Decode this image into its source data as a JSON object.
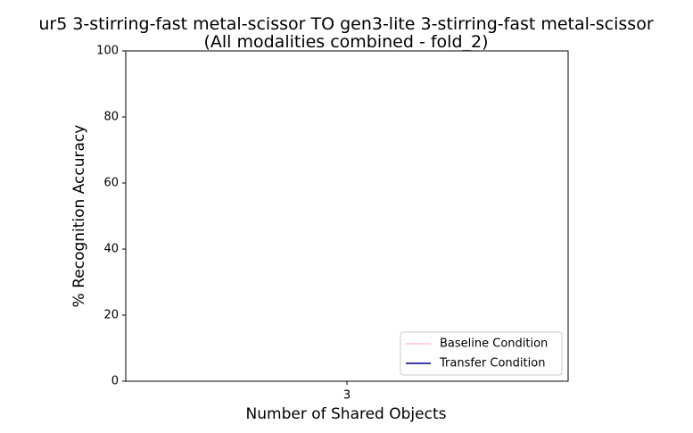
{
  "chart_data": {
    "type": "line",
    "title": "ur5 3-stirring-fast metal-scissor TO gen3-lite 3-stirring-fast metal-scissor\n(All modalities combined - fold_2)",
    "xlabel": "Number of Shared Objects",
    "ylabel": "% Recognition Accuracy",
    "categories": [
      "3"
    ],
    "series": [
      {
        "name": "Baseline Condition",
        "color": "#ffc0cb",
        "values": [
          null
        ]
      },
      {
        "name": "Transfer Condition",
        "color": "#00008b",
        "values": [
          null
        ]
      }
    ],
    "ylim": [
      0,
      100
    ],
    "yticks": [
      0,
      20,
      40,
      60,
      80,
      100
    ],
    "grid": false,
    "legend": "lower right"
  }
}
